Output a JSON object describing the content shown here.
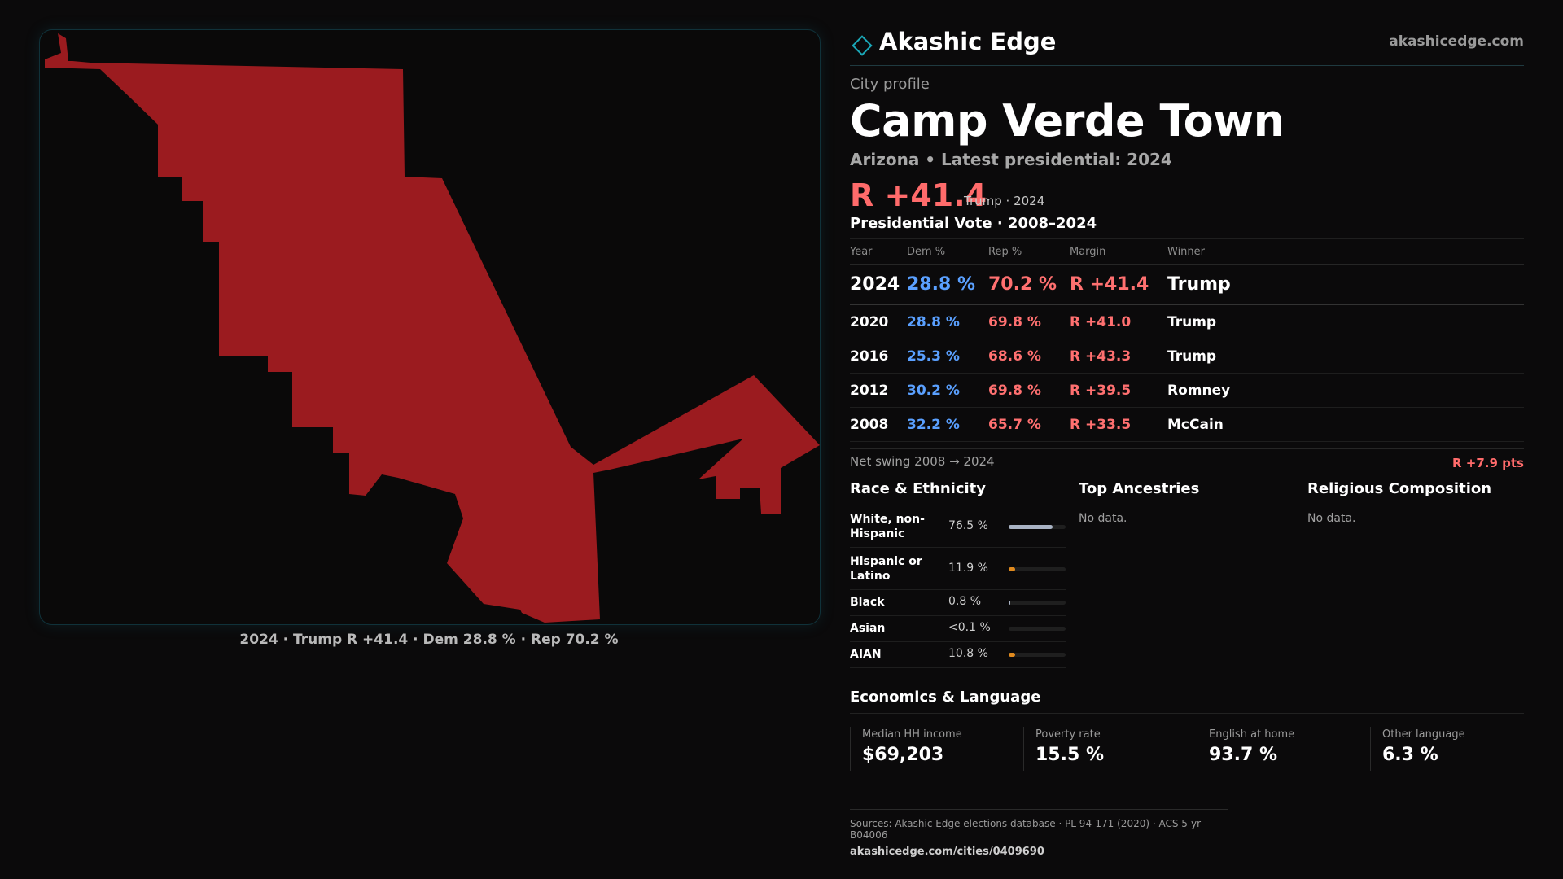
{
  "map": {
    "caption": "2024 · Trump R +41.4 · Dem 28.8 % · Rep 70.2 %",
    "fill_color": "#9b1b1f"
  },
  "brand": {
    "name": "Akashic Edge",
    "url": "akashicedge.com",
    "logo_icon": "diamond-outline-icon"
  },
  "profile": {
    "kicker": "City profile",
    "city": "Camp Verde Town",
    "subtitle": "Arizona • Latest presidential: 2024",
    "headline_margin": "R +41.4",
    "headline_who": "Trump · 2024"
  },
  "votes": {
    "title": "Presidential Vote · 2008–2024",
    "headers": {
      "year": "Year",
      "dem": "Dem %",
      "rep": "Rep %",
      "margin": "Margin",
      "winner": "Winner"
    },
    "rows": [
      {
        "year": "2024",
        "dem": "28.8 %",
        "rep": "70.2 %",
        "margin": "R +41.4",
        "winner": "Trump"
      },
      {
        "year": "2020",
        "dem": "28.8 %",
        "rep": "69.8 %",
        "margin": "R +41.0",
        "winner": "Trump"
      },
      {
        "year": "2016",
        "dem": "25.3 %",
        "rep": "68.6 %",
        "margin": "R +43.3",
        "winner": "Trump"
      },
      {
        "year": "2012",
        "dem": "30.2 %",
        "rep": "69.8 %",
        "margin": "R +39.5",
        "winner": "Romney"
      },
      {
        "year": "2008",
        "dem": "32.2 %",
        "rep": "65.7 %",
        "margin": "R +33.5",
        "winner": "McCain"
      }
    ],
    "swing_label": "Net swing 2008 → 2024",
    "swing_value": "R +7.9 pts"
  },
  "race": {
    "title": "Race & Ethnicity",
    "rows": [
      {
        "label": "White, non-Hispanic",
        "value": "76.5 %",
        "fraction": 0.765,
        "color": "#a9b3c4"
      },
      {
        "label": "Hispanic or Latino",
        "value": "11.9 %",
        "fraction": 0.119,
        "color": "#e08a1e"
      },
      {
        "label": "Black",
        "value": "0.8 %",
        "fraction": 0.008,
        "color": "#a9b3c4"
      },
      {
        "label": "Asian",
        "value": "<0.1 %",
        "fraction": 0.0,
        "color": "#a9b3c4"
      },
      {
        "label": "AIAN",
        "value": "10.8 %",
        "fraction": 0.108,
        "color": "#e08a1e"
      }
    ]
  },
  "ancestries": {
    "title": "Top Ancestries",
    "empty": "No data."
  },
  "religion": {
    "title": "Religious Composition",
    "empty": "No data."
  },
  "economics": {
    "title": "Economics & Language",
    "items": [
      {
        "label": "Median HH income",
        "value": "$69,203"
      },
      {
        "label": "Poverty rate",
        "value": "15.5 %"
      },
      {
        "label": "English at home",
        "value": "93.7 %"
      },
      {
        "label": "Other language",
        "value": "6.3 %"
      }
    ]
  },
  "sources": {
    "line1": "Sources: Akashic Edge elections database · PL 94-171 (2020) · ACS 5-yr B04006",
    "line2": "akashicedge.com/cities/0409690"
  }
}
